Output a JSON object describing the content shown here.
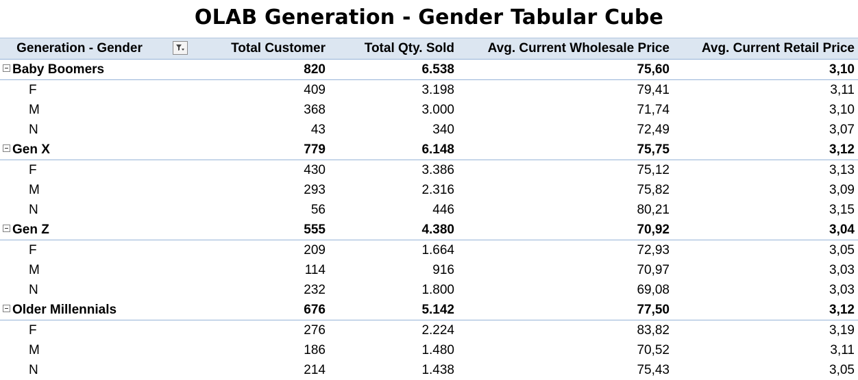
{
  "title": "OLAB Generation - Gender Tabular Cube",
  "headers": [
    "Generation - Gender",
    "Total Customer",
    "Total Qty. Sold",
    "Avg. Current Wholesale Price",
    "Avg. Current Retail Price"
  ],
  "groups": [
    {
      "label": "Baby Boomers",
      "values": [
        "820",
        "6.538",
        "75,60",
        "3,10"
      ],
      "children": [
        {
          "label": "F",
          "values": [
            "409",
            "3.198",
            "79,41",
            "3,11"
          ]
        },
        {
          "label": "M",
          "values": [
            "368",
            "3.000",
            "71,74",
            "3,10"
          ]
        },
        {
          "label": "N",
          "values": [
            "43",
            "340",
            "72,49",
            "3,07"
          ]
        }
      ]
    },
    {
      "label": "Gen X",
      "values": [
        "779",
        "6.148",
        "75,75",
        "3,12"
      ],
      "children": [
        {
          "label": "F",
          "values": [
            "430",
            "3.386",
            "75,12",
            "3,13"
          ]
        },
        {
          "label": "M",
          "values": [
            "293",
            "2.316",
            "75,82",
            "3,09"
          ]
        },
        {
          "label": "N",
          "values": [
            "56",
            "446",
            "80,21",
            "3,15"
          ]
        }
      ]
    },
    {
      "label": "Gen Z",
      "values": [
        "555",
        "4.380",
        "70,92",
        "3,04"
      ],
      "children": [
        {
          "label": "F",
          "values": [
            "209",
            "1.664",
            "72,93",
            "3,05"
          ]
        },
        {
          "label": "M",
          "values": [
            "114",
            "916",
            "70,97",
            "3,03"
          ]
        },
        {
          "label": "N",
          "values": [
            "232",
            "1.800",
            "69,08",
            "3,03"
          ]
        }
      ]
    },
    {
      "label": "Older Millennials",
      "values": [
        "676",
        "5.142",
        "77,50",
        "3,12"
      ],
      "children": [
        {
          "label": "F",
          "values": [
            "276",
            "2.224",
            "83,82",
            "3,19"
          ]
        },
        {
          "label": "M",
          "values": [
            "186",
            "1.480",
            "70,52",
            "3,11"
          ]
        },
        {
          "label": "N",
          "values": [
            "214",
            "1.438",
            "75,43",
            "3,05"
          ]
        }
      ]
    }
  ]
}
